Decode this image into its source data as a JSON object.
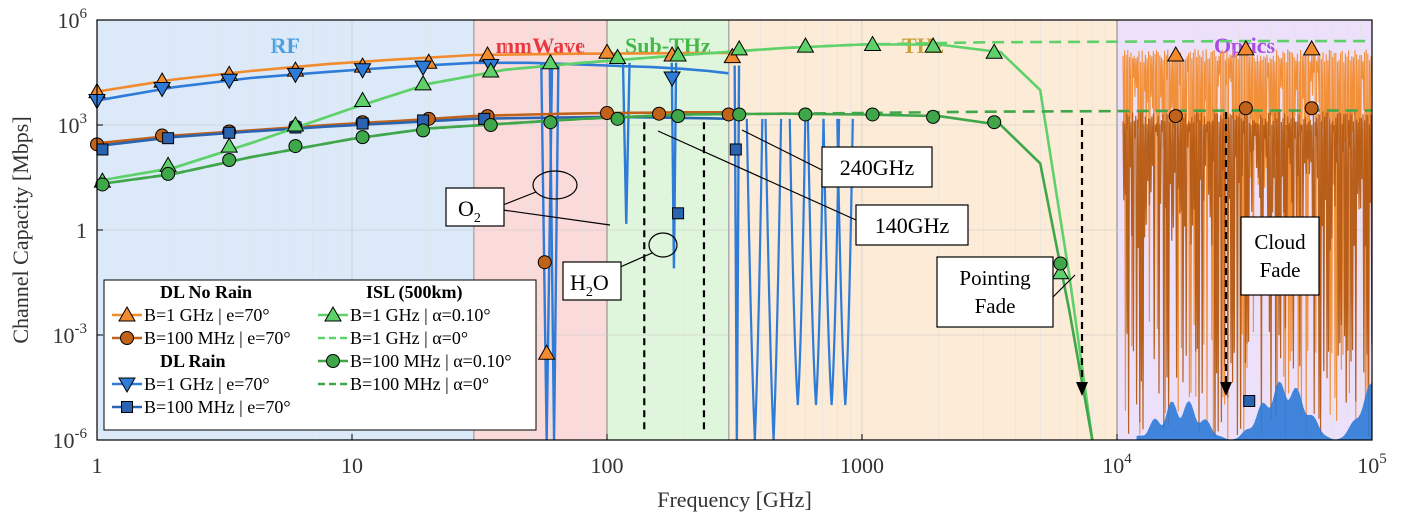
{
  "chart_data": {
    "type": "line",
    "xlabel": "Frequency [GHz]",
    "ylabel": "Channel Capacity [Mbps]",
    "xscale": "log",
    "yscale": "log",
    "xlim": [
      1,
      100000
    ],
    "ylim": [
      1e-06,
      1000000
    ],
    "x_ticks": [
      {
        "value": 1,
        "label": "1"
      },
      {
        "value": 10,
        "label": "10"
      },
      {
        "value": 100,
        "label": "100"
      },
      {
        "value": 1000,
        "label": "1000"
      },
      {
        "value": 10000,
        "base": "10",
        "exp": "4"
      },
      {
        "value": 100000,
        "base": "10",
        "exp": "5"
      }
    ],
    "y_ticks": [
      {
        "value": 1e-06,
        "base": "10",
        "exp": "-6"
      },
      {
        "value": 0.001,
        "base": "10",
        "exp": "-3"
      },
      {
        "value": 1,
        "label": "1"
      },
      {
        "value": 1000,
        "base": "10",
        "exp": "3"
      },
      {
        "value": 1000000,
        "base": "10",
        "exp": "6"
      }
    ],
    "grid": true,
    "bands": [
      {
        "label": "RF",
        "x0": 1,
        "x1": 30,
        "fill": "#dbe9f8",
        "text_color": "#4a9ee0"
      },
      {
        "label": "mmWave",
        "x0": 30,
        "x1": 100,
        "fill": "#fbdada",
        "text_color": "#e8383d"
      },
      {
        "label": "Sub-THz",
        "x0": 100,
        "x1": 300,
        "fill": "#e0f6dc",
        "text_color": "#45b84a"
      },
      {
        "label": "THz",
        "x0": 300,
        "x1": 10000,
        "fill": "#fcebd6",
        "text_color": "#c8a03a"
      },
      {
        "label": "Optics",
        "x0": 10000,
        "x1": 100000,
        "fill": "#ece0fa",
        "text_color": "#a84de0"
      }
    ],
    "series": [
      {
        "name": "B=1 GHz | e=70°",
        "group": "DL No Rain",
        "color": "#f28a2e",
        "marker": "triangle-up",
        "style": "solid",
        "x": [
          1,
          2,
          4,
          8,
          15,
          30,
          50,
          70,
          100,
          150,
          200,
          250,
          300
        ],
        "y": [
          9000,
          20000,
          35000,
          55000,
          75000,
          100000,
          105000,
          108000,
          110000,
          112000,
          113000,
          114000,
          115000
        ],
        "markers": [
          [
            1,
            9000
          ],
          [
            1.8,
            18000
          ],
          [
            3.3,
            28000
          ],
          [
            6,
            37000
          ],
          [
            11,
            48000
          ],
          [
            20,
            62000
          ],
          [
            34,
            100000
          ],
          [
            58,
            0.0003
          ],
          [
            100,
            120000
          ],
          [
            180,
            100000
          ],
          [
            310,
            90000
          ]
        ]
      },
      {
        "name": "B=100 MHz | e=70°",
        "group": "DL No Rain",
        "color": "#c0621a",
        "marker": "circle",
        "style": "solid",
        "x": [
          1,
          2,
          4,
          8,
          15,
          30,
          50,
          70,
          100,
          150,
          200,
          250,
          300
        ],
        "y": [
          300,
          500,
          700,
          1000,
          1300,
          1800,
          2000,
          2100,
          2200,
          2250,
          2300,
          2300,
          2300
        ],
        "markers": [
          [
            1,
            280
          ],
          [
            1.8,
            500
          ],
          [
            3.3,
            650
          ],
          [
            6,
            900
          ],
          [
            11,
            1200
          ],
          [
            20,
            1500
          ],
          [
            34,
            1800
          ],
          [
            57,
            0.12
          ],
          [
            100,
            2200
          ],
          [
            160,
            2100
          ],
          [
            300,
            2000
          ]
        ]
      },
      {
        "name": "B=1 GHz | e=70°",
        "group": "DL Rain",
        "color": "#2f7bd8",
        "marker": "triangle-down",
        "style": "solid",
        "x": [
          1,
          2,
          4,
          8,
          15,
          30,
          50,
          70,
          100,
          150,
          200,
          250,
          300
        ],
        "y": [
          5000,
          12000,
          22000,
          33000,
          45000,
          60000,
          60000,
          55000,
          50000,
          45000,
          40000,
          35000,
          30000
        ],
        "markers": [
          [
            1,
            5000
          ],
          [
            1.8,
            11000
          ],
          [
            3.3,
            19000
          ],
          [
            6,
            28000
          ],
          [
            11,
            38000
          ],
          [
            19,
            45000
          ],
          [
            35,
            50000
          ],
          [
            180,
            22000
          ]
        ]
      },
      {
        "name": "B=100 MHz | e=70°",
        "group": "DL Rain",
        "color": "#2a63b0",
        "marker": "square",
        "style": "solid",
        "x": [
          1,
          2,
          4,
          8,
          15,
          30,
          50,
          70,
          100,
          150,
          200,
          250,
          300
        ],
        "y": [
          250,
          450,
          650,
          900,
          1150,
          1500,
          1600,
          1650,
          1700,
          1650,
          1600,
          1550,
          1500
        ],
        "markers": [
          [
            1.05,
            200
          ],
          [
            1.9,
            420
          ],
          [
            3.3,
            600
          ],
          [
            6,
            850
          ],
          [
            11,
            1100
          ],
          [
            19,
            1350
          ],
          [
            33,
            1500
          ],
          [
            190,
            3.0
          ],
          [
            320,
            200
          ]
        ]
      },
      {
        "name": "B=1 GHz | α=0.10°",
        "group": "ISL (500km)",
        "color": "#5fd16a",
        "marker": "triangle-up",
        "style": "solid",
        "x": [
          1,
          2,
          4,
          10,
          20,
          40,
          80,
          200,
          500,
          1000,
          2000,
          3500,
          5000,
          6500,
          8000
        ],
        "y": [
          25,
          60,
          300,
          3000,
          15000,
          38000,
          60000,
          100000,
          160000,
          200000,
          200000,
          120000,
          10000,
          0.05,
          1e-06
        ],
        "markers": [
          [
            1.05,
            25
          ],
          [
            1.9,
            70
          ],
          [
            3.3,
            250
          ],
          [
            6,
            1000
          ],
          [
            11,
            5000
          ],
          [
            19,
            15000
          ],
          [
            35,
            35000
          ],
          [
            60,
            60000
          ],
          [
            110,
            85000
          ],
          [
            190,
            100000
          ],
          [
            330,
            150000
          ],
          [
            600,
            180000
          ],
          [
            1100,
            200000
          ],
          [
            1900,
            180000
          ],
          [
            3300,
            120000
          ],
          [
            6000,
            0.06
          ]
        ]
      },
      {
        "name": "B=1 GHz | α=0°",
        "group": "ISL (500km)",
        "color": "#5fd16a",
        "marker": "",
        "style": "dash",
        "x": [
          1,
          2,
          4,
          10,
          20,
          40,
          80,
          200,
          500,
          1000,
          3000,
          10000,
          30000,
          100000
        ],
        "y": [
          25,
          60,
          300,
          3000,
          15000,
          38000,
          60000,
          100000,
          160000,
          200000,
          230000,
          240000,
          250000,
          250000
        ],
        "markers": []
      },
      {
        "name": "B=100 MHz | α=0.10°",
        "group": "ISL (500km)",
        "color": "#3fa64a",
        "marker": "circle",
        "style": "solid",
        "x": [
          1,
          2,
          4,
          10,
          20,
          40,
          80,
          200,
          500,
          1000,
          2000,
          3500,
          5000,
          6500,
          8000
        ],
        "y": [
          20,
          40,
          120,
          400,
          800,
          1100,
          1500,
          2000,
          2100,
          2000,
          1800,
          1000,
          80,
          0.005,
          1e-06
        ],
        "markers": [
          [
            1.05,
            20
          ],
          [
            1.9,
            40
          ],
          [
            3.3,
            100
          ],
          [
            6,
            250
          ],
          [
            11,
            450
          ],
          [
            19,
            700
          ],
          [
            35,
            1000
          ],
          [
            60,
            1200
          ],
          [
            110,
            1500
          ],
          [
            190,
            1800
          ],
          [
            330,
            2000
          ],
          [
            600,
            2000
          ],
          [
            1100,
            2000
          ],
          [
            1900,
            1700
          ],
          [
            3300,
            1200
          ],
          [
            6000,
            0.11
          ]
        ]
      },
      {
        "name": "B=100 MHz | α=0°",
        "group": "ISL (500km)",
        "color": "#3fa64a",
        "marker": "",
        "style": "dash",
        "x": [
          1,
          2,
          4,
          10,
          20,
          40,
          80,
          200,
          500,
          1000,
          3000,
          10000,
          30000,
          100000
        ],
        "y": [
          20,
          40,
          120,
          400,
          800,
          1100,
          1500,
          2000,
          2100,
          2200,
          2400,
          2500,
          2600,
          2600
        ],
        "markers": []
      },
      {
        "name": "",
        "group": "",
        "color": "#f28a2e",
        "marker": "triangle-up",
        "style": "none",
        "x": [],
        "y": [],
        "markers": [
          [
            17000,
            100000
          ],
          [
            32000,
            150000
          ],
          [
            58000,
            150000
          ]
        ]
      },
      {
        "name": "",
        "group": "",
        "color": "#c0621a",
        "marker": "circle",
        "style": "none",
        "x": [],
        "y": [],
        "markers": [
          [
            17000,
            1800
          ],
          [
            32000,
            3000
          ],
          [
            58000,
            3000
          ]
        ]
      },
      {
        "name": "",
        "group": "",
        "color": "#2a63b0",
        "marker": "square",
        "style": "none",
        "x": [],
        "y": [],
        "markers": [
          [
            33000,
            1.3e-05
          ]
        ]
      }
    ],
    "annotations": [
      {
        "text": "O",
        "sub": "2"
      },
      {
        "text": "H",
        "sub": "2",
        "tail": "O"
      },
      {
        "text": "240GHz"
      },
      {
        "text": "140GHz"
      },
      {
        "lines": [
          "Pointing",
          "Fade"
        ]
      },
      {
        "lines": [
          "Cloud",
          "Fade"
        ]
      }
    ],
    "legend": {
      "position": "bottom-left",
      "groups": [
        {
          "title": "DL No Rain",
          "entries": [
            0,
            1
          ]
        },
        {
          "title": "DL Rain",
          "entries": [
            2,
            3
          ]
        },
        {
          "title": "ISL (500km)",
          "entries": [
            4,
            5,
            6,
            7
          ]
        }
      ],
      "colors": {
        "triangle-fill": "#f28a2e"
      }
    }
  }
}
